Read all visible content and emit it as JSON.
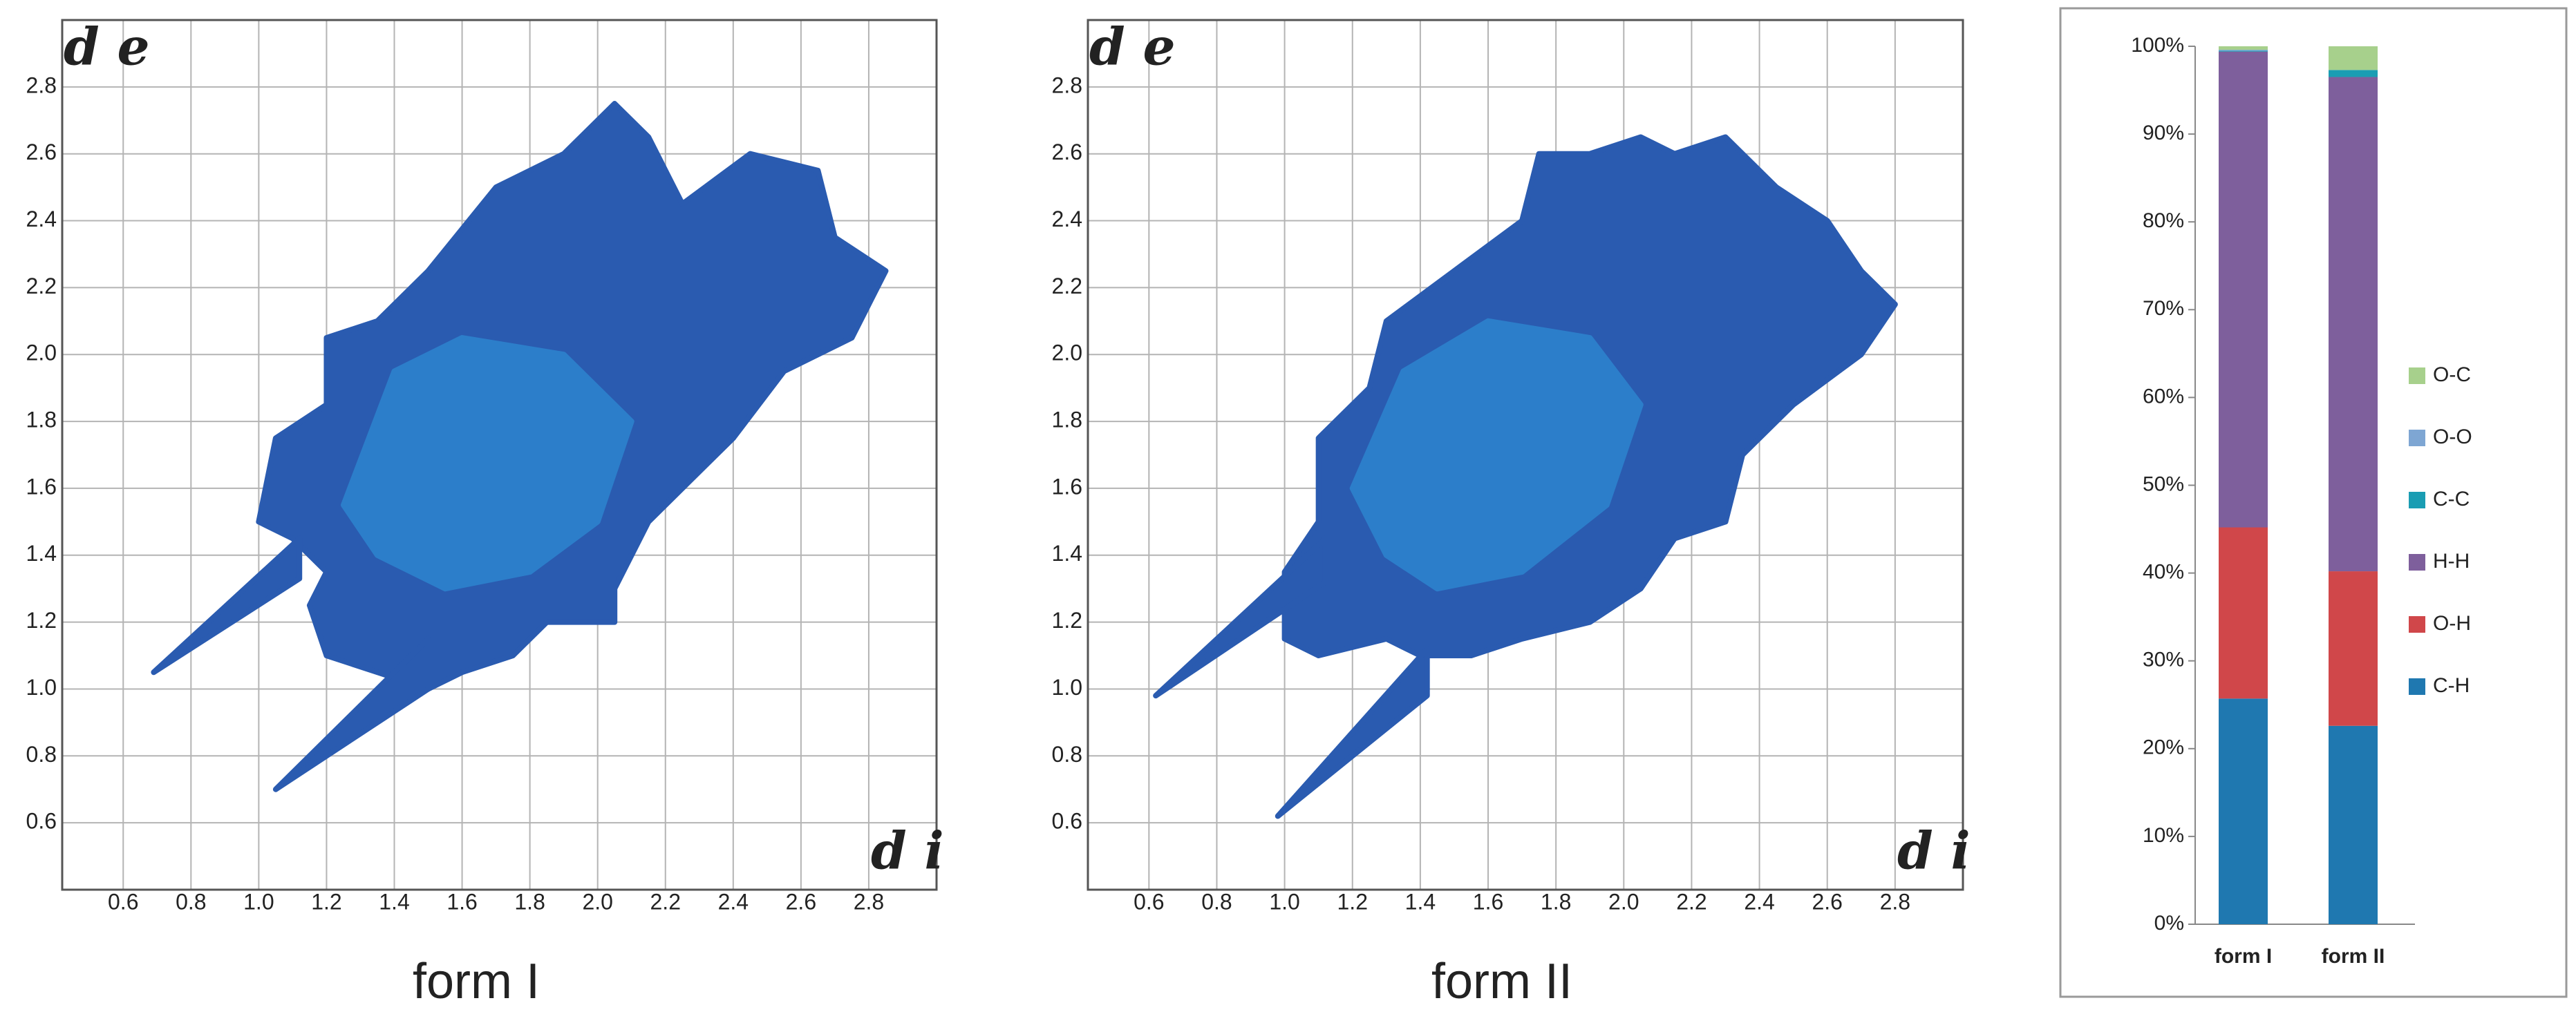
{
  "chart_data": [
    {
      "type": "fingerprint",
      "title": "form I",
      "xlabel": "d i",
      "ylabel": "d e",
      "xlim": [
        0.42,
        3.0
      ],
      "ylim": [
        0.4,
        3.0
      ],
      "xticks": [
        0.6,
        0.8,
        {
          "value": 1,
          "label": "1.0"
        },
        1.2,
        1.4,
        1.6,
        1.8,
        {
          "value": 2,
          "label": "2.0"
        },
        2.2,
        2.4,
        2.6,
        2.8
      ],
      "yticks": [
        0.6,
        0.8,
        {
          "value": 1,
          "label": "1.0"
        },
        1.2,
        1.4,
        1.6,
        1.8,
        {
          "value": 2,
          "label": "2.0"
        },
        2.2,
        2.4,
        2.6,
        2.8
      ],
      "grid": true,
      "series": [
        {
          "color": "#2a5bb0",
          "x": [
            1.0,
            1.05,
            1.2,
            1.2,
            1.35,
            1.5,
            1.7,
            1.9,
            2.05,
            2.15,
            2.25,
            2.45,
            2.65,
            2.7,
            2.85,
            2.75,
            2.55,
            2.4,
            2.15,
            2.05,
            2.05,
            1.85,
            1.75,
            1.6,
            1.5,
            1.35,
            1.2,
            1.15,
            1.2,
            1.1
          ],
          "values": [
            1.5,
            1.75,
            1.85,
            2.05,
            2.1,
            2.25,
            2.5,
            2.6,
            2.75,
            2.65,
            2.45,
            2.6,
            2.55,
            2.35,
            2.25,
            2.05,
            1.95,
            1.75,
            1.5,
            1.3,
            1.2,
            1.2,
            1.1,
            1.05,
            1.0,
            1.05,
            1.1,
            1.25,
            1.35,
            1.45
          ]
        },
        {
          "color": "#2a5bb0",
          "x": [
            0.69,
            1.12,
            1.12
          ],
          "values": [
            1.05,
            1.33,
            1.45
          ]
        },
        {
          "color": "#2a5bb0",
          "x": [
            1.05,
            1.5,
            1.5
          ],
          "values": [
            0.7,
            1.0,
            1.15
          ]
        },
        {
          "color": "#2f9be0",
          "x": [
            1.25,
            1.4,
            1.6,
            1.9,
            2.1,
            2.0,
            1.8,
            1.55,
            1.35
          ],
          "values": [
            1.55,
            1.95,
            2.05,
            2.0,
            1.8,
            1.5,
            1.35,
            1.3,
            1.4
          ]
        }
      ]
    },
    {
      "type": "fingerprint",
      "title": "form II",
      "xlabel": "d i",
      "ylabel": "d e",
      "xlim": [
        0.42,
        3.0
      ],
      "ylim": [
        0.4,
        3.0
      ],
      "xticks": [
        0.6,
        0.8,
        {
          "value": 1,
          "label": "1.0"
        },
        1.2,
        1.4,
        1.6,
        1.8,
        {
          "value": 2,
          "label": "2.0"
        },
        2.2,
        2.4,
        2.6,
        2.8
      ],
      "yticks": [
        0.6,
        0.8,
        {
          "value": 1,
          "label": "1.0"
        },
        1.2,
        1.4,
        1.6,
        1.8,
        {
          "value": 2,
          "label": "2.0"
        },
        2.2,
        2.4,
        2.6,
        2.8
      ],
      "grid": true,
      "series": [
        {
          "color": "#2a5bb0",
          "x": [
            1.0,
            1.0,
            1.1,
            1.1,
            1.25,
            1.3,
            1.5,
            1.7,
            1.75,
            1.9,
            2.05,
            2.15,
            2.3,
            2.45,
            2.6,
            2.7,
            2.8,
            2.7,
            2.5,
            2.35,
            2.3,
            2.15,
            2.05,
            1.9,
            1.7,
            1.55,
            1.4,
            1.3,
            1.1
          ],
          "values": [
            1.15,
            1.35,
            1.5,
            1.75,
            1.9,
            2.1,
            2.25,
            2.4,
            2.6,
            2.6,
            2.65,
            2.6,
            2.65,
            2.5,
            2.4,
            2.25,
            2.15,
            2.0,
            1.85,
            1.7,
            1.5,
            1.45,
            1.3,
            1.2,
            1.15,
            1.1,
            1.1,
            1.15,
            1.1
          ]
        },
        {
          "color": "#2a5bb0",
          "x": [
            0.62,
            1.12,
            1.12
          ],
          "values": [
            0.98,
            1.32,
            1.45
          ]
        },
        {
          "color": "#2a5bb0",
          "x": [
            0.98,
            1.42,
            1.42
          ],
          "values": [
            0.62,
            0.98,
            1.12
          ]
        },
        {
          "color": "#2f9be0",
          "x": [
            1.2,
            1.35,
            1.6,
            1.9,
            2.05,
            1.95,
            1.7,
            1.45,
            1.3
          ],
          "values": [
            1.6,
            1.95,
            2.1,
            2.05,
            1.85,
            1.55,
            1.35,
            1.3,
            1.4
          ]
        }
      ]
    },
    {
      "type": "stacked_bar",
      "categories": [
        "form I",
        "form II"
      ],
      "ylim": [
        0,
        100
      ],
      "yticks": [
        {
          "value": 0,
          "label": "0%"
        },
        {
          "value": 10,
          "label": "10%"
        },
        {
          "value": 20,
          "label": "20%"
        },
        {
          "value": 30,
          "label": "30%"
        },
        {
          "value": 40,
          "label": "40%"
        },
        {
          "value": 50,
          "label": "50%"
        },
        {
          "value": 60,
          "label": "60%"
        },
        {
          "value": 70,
          "label": "70%"
        },
        {
          "value": 80,
          "label": "80%"
        },
        {
          "value": 90,
          "label": "90%"
        },
        {
          "value": 100,
          "label": "100%"
        }
      ],
      "series": [
        {
          "name": "C-H",
          "color": "#1f78b0",
          "values": [
            25.7,
            22.6
          ]
        },
        {
          "name": "O-H",
          "color": "#d0474a",
          "values": [
            19.5,
            17.6
          ]
        },
        {
          "name": "H-H",
          "color": "#7e5f9c",
          "values": [
            54.2,
            56.3
          ]
        },
        {
          "name": "C-C",
          "color": "#1a9db3",
          "values": [
            0.1,
            0.8
          ]
        },
        {
          "name": "O-O",
          "color": "#7ea6d3",
          "values": [
            0.1,
            0.0
          ]
        },
        {
          "name": "O-C",
          "color": "#a7d08c",
          "values": [
            0.4,
            2.7
          ]
        }
      ]
    }
  ]
}
